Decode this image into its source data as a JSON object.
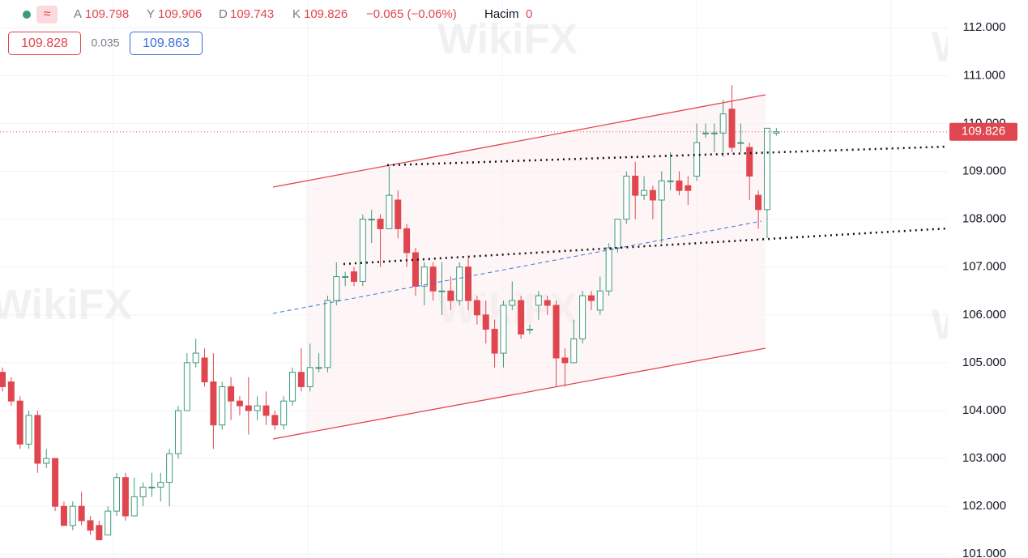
{
  "header": {
    "symbol_icon": "≈",
    "open_label": "A",
    "high_label": "Y",
    "low_label": "D",
    "close_label": "K",
    "change": "−0.065 (−0.06%)",
    "volume_label": "Hacim",
    "volume": "0",
    "bid": "109.828",
    "spread": "0.035",
    "ask": "109.863"
  },
  "watermark": "WikiFX",
  "chart_data": {
    "type": "candlestick",
    "up_color": "#3d9a7c",
    "down_color": "#e0464f",
    "categories": [
      null,
      null,
      null,
      null,
      null,
      null,
      null,
      null,
      null,
      null,
      null,
      null,
      null,
      null,
      null,
      null,
      null,
      null,
      null,
      null,
      null,
      null,
      null,
      null,
      null,
      null,
      null,
      null,
      null,
      null,
      null,
      null,
      null,
      null,
      null,
      null,
      null,
      null,
      null,
      null,
      null,
      null,
      null,
      null,
      null,
      null,
      null,
      null,
      null,
      null,
      null,
      null,
      null,
      null,
      null,
      null,
      null,
      null,
      null,
      null,
      null,
      null,
      null,
      null,
      null,
      null,
      null,
      null,
      null,
      null,
      null,
      null,
      null,
      null,
      null,
      null,
      null,
      null,
      null,
      null,
      null,
      null,
      null,
      null,
      null,
      null,
      null,
      null,
      null
    ],
    "open": [
      104.8,
      104.6,
      104.2,
      103.3,
      103.9,
      102.9,
      103.0,
      102.0,
      101.6,
      102.0,
      101.7,
      101.6,
      101.4,
      101.9,
      102.6,
      101.8,
      102.2,
      102.4,
      102.4,
      102.5,
      103.1,
      104.0,
      105.0,
      105.1,
      104.6,
      103.7,
      104.5,
      104.2,
      104.1,
      104.0,
      104.1,
      103.9,
      103.7,
      104.2,
      104.8,
      104.5,
      104.9,
      104.9,
      106.3,
      106.8,
      106.9,
      106.7,
      108.0,
      108.0,
      107.8,
      108.4,
      107.8,
      107.3,
      106.6,
      107.0,
      106.5,
      106.5,
      106.3,
      107.0,
      106.3,
      106.0,
      105.7,
      105.2,
      106.2,
      106.3,
      105.7,
      106.2,
      106.3,
      106.2,
      105.1,
      105.0,
      105.5,
      106.4,
      106.1,
      106.5,
      107.4,
      108.0,
      108.9,
      108.5,
      108.6,
      108.4,
      108.8,
      108.8,
      108.7,
      108.9,
      109.8,
      109.8,
      109.8,
      110.3,
      109.6,
      109.5,
      108.5,
      108.2,
      109.798
    ],
    "high": [
      104.9,
      104.7,
      104.3,
      104.0,
      104.0,
      103.2,
      103.0,
      102.1,
      102.1,
      102.3,
      101.8,
      101.7,
      102.0,
      102.7,
      102.7,
      102.6,
      102.5,
      102.7,
      102.7,
      103.2,
      104.1,
      105.2,
      105.5,
      105.3,
      105.2,
      104.6,
      104.7,
      104.3,
      104.7,
      104.3,
      104.4,
      104.0,
      104.3,
      104.9,
      105.3,
      105.4,
      105.2,
      106.4,
      107.1,
      106.9,
      107.0,
      108.1,
      108.2,
      108.1,
      109.1,
      108.6,
      107.9,
      107.4,
      107.1,
      107.1,
      107.1,
      106.8,
      107.1,
      107.2,
      106.4,
      106.3,
      105.9,
      106.3,
      106.7,
      106.4,
      105.8,
      106.5,
      106.4,
      106.3,
      105.3,
      105.9,
      106.5,
      106.5,
      106.8,
      107.5,
      108.0,
      109.0,
      109.2,
      108.9,
      108.7,
      109.0,
      109.4,
      109.0,
      108.9,
      110.0,
      110.0,
      110.0,
      110.5,
      110.8,
      110.0,
      109.6,
      108.6,
      109.9,
      109.906
    ],
    "low": [
      104.4,
      104.1,
      103.2,
      103.2,
      102.7,
      102.8,
      101.9,
      101.6,
      101.5,
      101.6,
      101.4,
      101.3,
      101.4,
      101.8,
      101.7,
      101.8,
      102.0,
      102.2,
      102.1,
      102.0,
      103.0,
      104.0,
      104.9,
      104.5,
      103.2,
      103.6,
      103.8,
      103.9,
      103.5,
      103.8,
      103.7,
      103.6,
      103.6,
      104.1,
      104.4,
      104.4,
      104.8,
      104.8,
      106.2,
      106.6,
      106.6,
      106.6,
      107.5,
      107.0,
      107.8,
      107.6,
      107.0,
      106.4,
      106.2,
      106.3,
      106.0,
      106.1,
      106.2,
      106.1,
      105.8,
      105.4,
      104.9,
      104.9,
      106.1,
      105.5,
      105.6,
      105.9,
      106.0,
      104.5,
      104.5,
      105.0,
      105.4,
      106.1,
      106.0,
      106.4,
      107.3,
      107.9,
      108.0,
      108.4,
      108.0,
      107.5,
      108.6,
      108.5,
      108.3,
      108.8,
      109.7,
      109.4,
      109.3,
      109.4,
      109.4,
      108.4,
      107.8,
      107.6,
      109.743
    ],
    "close": [
      104.5,
      104.2,
      103.3,
      103.9,
      102.9,
      103.0,
      102.0,
      101.6,
      102.0,
      101.7,
      101.5,
      101.3,
      101.9,
      102.6,
      101.8,
      102.2,
      102.4,
      102.4,
      102.5,
      103.1,
      104.0,
      105.0,
      105.2,
      104.6,
      103.7,
      104.5,
      104.2,
      104.1,
      104.0,
      104.1,
      103.9,
      103.7,
      104.2,
      104.8,
      104.5,
      104.9,
      104.9,
      106.3,
      106.8,
      106.8,
      106.7,
      108.0,
      108.0,
      107.8,
      108.5,
      107.8,
      107.3,
      106.6,
      107.0,
      106.5,
      106.5,
      106.3,
      107.0,
      106.3,
      106.0,
      105.7,
      105.2,
      106.2,
      106.3,
      105.6,
      105.7,
      106.4,
      106.2,
      105.1,
      105.0,
      105.5,
      106.4,
      106.3,
      106.5,
      107.4,
      108.0,
      108.9,
      108.5,
      108.6,
      108.4,
      108.8,
      108.8,
      108.6,
      108.6,
      109.6,
      109.8,
      109.8,
      110.2,
      109.5,
      109.6,
      108.9,
      108.2,
      109.9,
      109.826
    ],
    "ylim": [
      100.92,
      112.58
    ],
    "yticks": [
      {
        "value": 101,
        "label": "101.000"
      },
      {
        "value": 102,
        "label": "102.000"
      },
      {
        "value": 103,
        "label": "103.000"
      },
      {
        "value": 104,
        "label": "104.000"
      },
      {
        "value": 105,
        "label": "105.000"
      },
      {
        "value": 106,
        "label": "106.000"
      },
      {
        "value": 107,
        "label": "107.000"
      },
      {
        "value": 108,
        "label": "108.000"
      },
      {
        "value": 109,
        "label": "109.000"
      },
      {
        "value": 110,
        "label": "110.000"
      },
      {
        "value": 111,
        "label": "111.000"
      },
      {
        "value": 112,
        "label": "112.000"
      }
    ],
    "grid": true
  }
}
